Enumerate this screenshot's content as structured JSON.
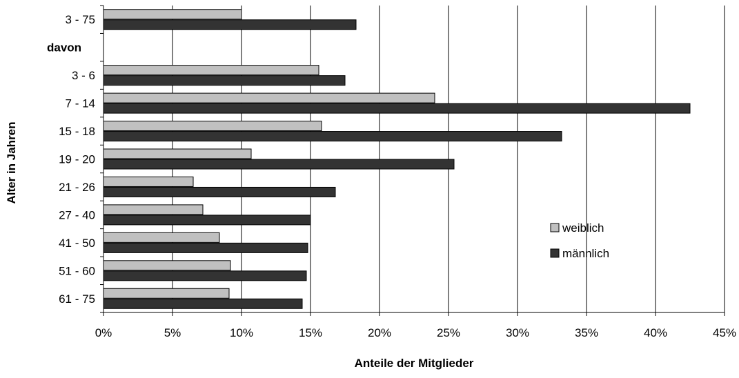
{
  "chart_data": {
    "type": "bar",
    "orientation": "horizontal",
    "xlabel": "Anteile der Mitglieder",
    "ylabel": "Alter in Jahren",
    "xlim": [
      0,
      45
    ],
    "x_ticks": [
      "0%",
      "5%",
      "10%",
      "15%",
      "20%",
      "25%",
      "30%",
      "35%",
      "40%",
      "45%"
    ],
    "grid": "vertical",
    "legend_position": "right",
    "categories": [
      "3 - 75",
      "davon",
      "3 - 6",
      "7 - 14",
      "15 - 18",
      "19 - 20",
      "21 - 26",
      "27 - 40",
      "41 - 50",
      "51 - 60",
      "61 - 75"
    ],
    "series": [
      {
        "name": "weiblich",
        "color": "#c0c0c0",
        "values": [
          10.0,
          null,
          15.6,
          24.0,
          15.8,
          10.7,
          6.5,
          7.2,
          8.4,
          9.2,
          9.1
        ]
      },
      {
        "name": "männlich",
        "color": "#333333",
        "values": [
          18.3,
          null,
          17.5,
          42.5,
          33.2,
          25.4,
          16.8,
          15.0,
          14.8,
          14.7,
          14.4
        ]
      }
    ]
  }
}
